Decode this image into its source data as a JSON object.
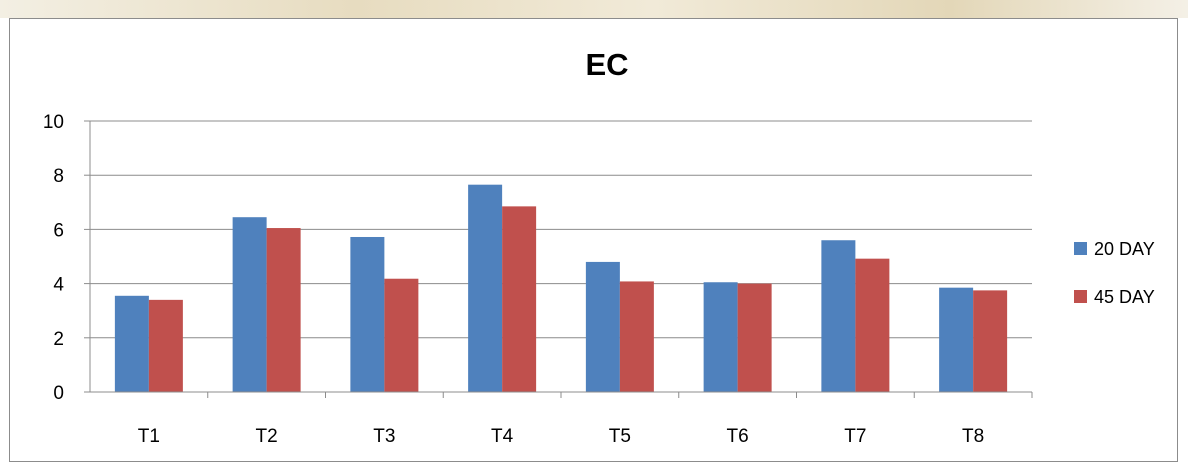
{
  "chart_data": {
    "type": "bar",
    "title": "EC",
    "xlabel": "",
    "ylabel": "",
    "categories": [
      "T1",
      "T2",
      "T3",
      "T4",
      "T5",
      "T6",
      "T7",
      "T8"
    ],
    "series": [
      {
        "name": "20 DAY",
        "color": "#4f81bd",
        "values": [
          3.55,
          6.45,
          5.72,
          7.65,
          4.8,
          4.05,
          5.6,
          3.85
        ]
      },
      {
        "name": "45 DAY",
        "color": "#c0504d",
        "values": [
          3.4,
          6.05,
          4.18,
          6.85,
          4.08,
          4.0,
          4.92,
          3.75
        ]
      }
    ],
    "ylim": [
      0,
      10
    ],
    "yticks": [
      0,
      2,
      4,
      6,
      8,
      10
    ],
    "grid": true,
    "legend": "right"
  }
}
